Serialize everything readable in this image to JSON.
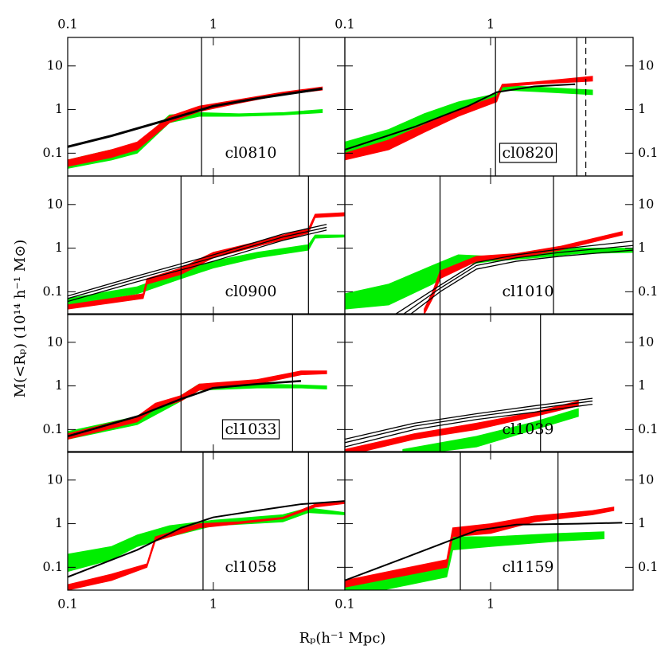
{
  "x_axis_label": "Rₚ(h⁻¹ Mpc)",
  "y_axis_label": "M(<Rₚ)  (10¹⁴ h⁻¹ M⊙)",
  "chart_data": [
    {
      "type": "line",
      "label": "cl0810",
      "xlim": [
        0.1,
        8
      ],
      "ylim": [
        0.03,
        45
      ],
      "xticks": [
        0.1,
        1
      ],
      "yticks": [
        0.1,
        1,
        10
      ],
      "log": true,
      "vlines": [
        {
          "x": 0.83
        },
        {
          "x": 3.9
        }
      ],
      "series": [
        {
          "color": "#00ee00",
          "x": [
            0.1,
            0.2,
            0.3,
            0.5,
            0.8,
            1.5,
            3,
            5.6
          ],
          "lower": [
            0.045,
            0.07,
            0.1,
            0.5,
            0.7,
            0.7,
            0.75,
            0.85
          ],
          "upper": [
            0.07,
            0.12,
            0.16,
            0.75,
            0.85,
            0.8,
            0.85,
            1.0
          ]
        },
        {
          "color": "#ff0000",
          "x": [
            0.1,
            0.2,
            0.3,
            0.5,
            0.8,
            1.5,
            3,
            5.6
          ],
          "lower": [
            0.05,
            0.08,
            0.12,
            0.5,
            0.9,
            1.4,
            2.2,
            2.8
          ],
          "upper": [
            0.07,
            0.12,
            0.18,
            0.7,
            1.2,
            1.7,
            2.5,
            3.3
          ]
        },
        {
          "color": "#000000",
          "width": 3,
          "x": [
            0.1,
            0.2,
            0.5,
            1,
            2,
            5.6
          ],
          "values": [
            0.14,
            0.25,
            0.6,
            1.2,
            1.8,
            3.0
          ]
        }
      ]
    },
    {
      "type": "line",
      "label": "cl0820",
      "boxed": true,
      "xlim": [
        0.1,
        9.5
      ],
      "ylim": [
        0.03,
        45
      ],
      "xticks": [
        0.1,
        1
      ],
      "yticks": [
        0.1,
        1,
        10
      ],
      "log": true,
      "vlines": [
        {
          "x": 1.08
        },
        {
          "x": 3.9
        },
        {
          "x": 4.5,
          "dashed": true
        }
      ],
      "series": [
        {
          "color": "#00ee00",
          "x": [
            0.1,
            0.2,
            0.35,
            0.6,
            1.1,
            1.2,
            2,
            5
          ],
          "lower": [
            0.1,
            0.2,
            0.4,
            1.0,
            1.8,
            2.8,
            2.6,
            2.2
          ],
          "upper": [
            0.18,
            0.35,
            0.8,
            1.5,
            2.3,
            3.5,
            3.3,
            2.8
          ]
        },
        {
          "color": "#ff0000",
          "x": [
            0.1,
            0.2,
            0.35,
            0.6,
            1.1,
            1.2,
            2,
            5
          ],
          "lower": [
            0.07,
            0.12,
            0.3,
            0.7,
            1.5,
            3.3,
            3.8,
            4.5
          ],
          "upper": [
            0.1,
            0.2,
            0.45,
            1.0,
            2,
            3.8,
            4.3,
            5.8
          ]
        },
        {
          "color": "#000000",
          "width": 2,
          "x": [
            0.1,
            0.3,
            0.7,
            1.1,
            2,
            3.8
          ],
          "values": [
            0.12,
            0.4,
            1.2,
            2.5,
            3.4,
            3.8
          ]
        }
      ]
    },
    {
      "type": "line",
      "label": "cl0900",
      "xlim": [
        0.1,
        8
      ],
      "ylim": [
        0.03,
        45
      ],
      "xticks": [
        0.1,
        1
      ],
      "yticks": [
        0.1,
        1,
        10
      ],
      "log": true,
      "vlines": [
        {
          "x": 0.6
        },
        {
          "x": 4.5
        }
      ],
      "series": [
        {
          "color": "#00ee00",
          "x": [
            0.1,
            0.3,
            0.6,
            1,
            2,
            4.5,
            5,
            8
          ],
          "lower": [
            0.05,
            0.09,
            0.2,
            0.35,
            0.6,
            0.9,
            1.7,
            1.8
          ],
          "upper": [
            0.07,
            0.13,
            0.3,
            0.5,
            0.8,
            1.2,
            2,
            2
          ]
        },
        {
          "color": "#ff0000",
          "x": [
            0.1,
            0.33,
            0.35,
            0.6,
            1,
            2,
            4.5,
            5,
            8
          ],
          "lower": [
            0.04,
            0.07,
            0.15,
            0.25,
            0.6,
            1.1,
            2.2,
            5,
            5.5
          ],
          "upper": [
            0.05,
            0.09,
            0.2,
            0.35,
            0.8,
            1.4,
            2.8,
            6,
            6.5
          ]
        },
        {
          "color": "#000000",
          "width": 1.3,
          "x": [
            0.1,
            0.3,
            1,
            3,
            6
          ],
          "values": [
            0.06,
            0.17,
            0.5,
            1.5,
            2.6
          ]
        },
        {
          "color": "#000000",
          "width": 1.3,
          "x": [
            0.1,
            0.3,
            1,
            3,
            6
          ],
          "values": [
            0.07,
            0.2,
            0.6,
            1.8,
            3.0
          ]
        },
        {
          "color": "#000000",
          "width": 1.3,
          "x": [
            0.1,
            0.3,
            1,
            3,
            6
          ],
          "values": [
            0.08,
            0.23,
            0.7,
            2.1,
            3.5
          ]
        }
      ]
    },
    {
      "type": "line",
      "label": "cl1010",
      "xlim": [
        0.1,
        9.5
      ],
      "ylim": [
        0.03,
        45
      ],
      "xticks": [
        0.1,
        1
      ],
      "yticks": [
        0.1,
        1,
        10
      ],
      "log": true,
      "vlines": [
        {
          "x": 0.45
        },
        {
          "x": 2.7
        }
      ],
      "series": [
        {
          "color": "#00ee00",
          "x": [
            0.1,
            0.2,
            0.4,
            0.6,
            1,
            2,
            4,
            9.5
          ],
          "lower": [
            0.04,
            0.05,
            0.15,
            0.4,
            0.5,
            0.6,
            0.75,
            0.8
          ],
          "upper": [
            0.09,
            0.15,
            0.4,
            0.7,
            0.65,
            0.8,
            1.0,
            1.0
          ]
        },
        {
          "color": "#ff0000",
          "x": [
            0.35,
            0.4,
            0.45,
            0.8,
            1.5,
            3,
            8
          ],
          "lower": [
            0.03,
            0.07,
            0.2,
            0.5,
            0.6,
            0.9,
            2
          ],
          "upper": [
            0.04,
            0.1,
            0.3,
            0.65,
            0.75,
            1.1,
            2.4
          ]
        },
        {
          "color": "#000000",
          "width": 1.3,
          "x": [
            0.28,
            0.45,
            0.8,
            1.5,
            3,
            9.5
          ],
          "values": [
            0.03,
            0.1,
            0.33,
            0.5,
            0.65,
            0.9
          ]
        },
        {
          "color": "#000000",
          "width": 1.3,
          "x": [
            0.25,
            0.45,
            0.8,
            1.5,
            3,
            9.5
          ],
          "values": [
            0.03,
            0.12,
            0.4,
            0.6,
            0.8,
            1.15
          ]
        },
        {
          "color": "#000000",
          "width": 1.3,
          "x": [
            0.22,
            0.45,
            0.8,
            1.5,
            3,
            9.5
          ],
          "values": [
            0.03,
            0.14,
            0.47,
            0.7,
            0.95,
            1.45
          ]
        }
      ]
    },
    {
      "type": "line",
      "label": "cl1033",
      "boxed": true,
      "xlim": [
        0.1,
        8
      ],
      "ylim": [
        0.03,
        45
      ],
      "xticks": [
        0.1,
        1
      ],
      "yticks": [
        0.1,
        1,
        10
      ],
      "log": true,
      "vlines": [
        {
          "x": 0.6
        },
        {
          "x": 3.5
        }
      ],
      "series": [
        {
          "color": "#00ee00",
          "x": [
            0.1,
            0.3,
            0.6,
            0.8,
            2,
            4,
            6
          ],
          "lower": [
            0.06,
            0.13,
            0.45,
            0.8,
            0.9,
            0.9,
            0.85
          ],
          "upper": [
            0.09,
            0.2,
            0.6,
            1.1,
            1.1,
            1.05,
            1.0
          ]
        },
        {
          "color": "#ff0000",
          "x": [
            0.1,
            0.3,
            0.4,
            0.6,
            0.8,
            2,
            4,
            6
          ],
          "lower": [
            0.06,
            0.15,
            0.3,
            0.45,
            0.8,
            1.1,
            1.8,
            1.9
          ],
          "upper": [
            0.08,
            0.2,
            0.4,
            0.6,
            1.1,
            1.4,
            2.2,
            2.2
          ]
        },
        {
          "color": "#000000",
          "width": 2.5,
          "x": [
            0.1,
            0.3,
            0.6,
            1,
            2,
            4
          ],
          "values": [
            0.07,
            0.2,
            0.5,
            0.9,
            1.1,
            1.3
          ]
        }
      ]
    },
    {
      "type": "line",
      "label": "cl1039",
      "xlim": [
        0.1,
        9.5
      ],
      "ylim": [
        0.03,
        45
      ],
      "xticks": [
        0.1,
        1
      ],
      "yticks": [
        0.1,
        1,
        10
      ],
      "log": true,
      "vlines": [
        {
          "x": 0.45
        },
        {
          "x": 2.2
        }
      ],
      "series": [
        {
          "color": "#00ee00",
          "x": [
            0.25,
            0.8,
            2,
            4
          ],
          "lower": [
            0.025,
            0.04,
            0.1,
            0.2
          ],
          "upper": [
            0.035,
            0.07,
            0.15,
            0.3
          ]
        },
        {
          "color": "#ff0000",
          "x": [
            0.1,
            0.3,
            0.8,
            2,
            4
          ],
          "lower": [
            0.025,
            0.06,
            0.1,
            0.2,
            0.35
          ],
          "upper": [
            0.035,
            0.08,
            0.14,
            0.25,
            0.45
          ]
        },
        {
          "color": "#000000",
          "width": 1.3,
          "x": [
            0.1,
            0.3,
            0.8,
            2,
            5
          ],
          "values": [
            0.04,
            0.1,
            0.17,
            0.25,
            0.38
          ]
        },
        {
          "color": "#000000",
          "width": 1.3,
          "x": [
            0.1,
            0.3,
            0.8,
            2,
            5
          ],
          "values": [
            0.05,
            0.12,
            0.2,
            0.3,
            0.45
          ]
        },
        {
          "color": "#000000",
          "width": 1.3,
          "x": [
            0.1,
            0.3,
            0.8,
            2,
            5
          ],
          "values": [
            0.06,
            0.14,
            0.23,
            0.35,
            0.52
          ]
        }
      ]
    },
    {
      "type": "line",
      "label": "cl1058",
      "xlim": [
        0.1,
        8
      ],
      "ylim": [
        0.03,
        45
      ],
      "xticks": [
        0.1,
        1
      ],
      "yticks": [
        0.1,
        1,
        10
      ],
      "log": true,
      "vlines": [
        {
          "x": 0.85
        },
        {
          "x": 4.5
        }
      ],
      "series": [
        {
          "color": "#00ee00",
          "x": [
            0.1,
            0.2,
            0.3,
            0.5,
            1,
            3,
            4.5,
            8
          ],
          "lower": [
            0.08,
            0.15,
            0.3,
            0.5,
            0.9,
            1.1,
            1.8,
            1.6
          ],
          "upper": [
            0.2,
            0.3,
            0.55,
            0.9,
            1.2,
            1.6,
            2.3,
            1.8
          ]
        },
        {
          "color": "#ff0000",
          "x": [
            0.1,
            0.2,
            0.35,
            0.4,
            0.8,
            1.5,
            3,
            5,
            8
          ],
          "lower": [
            0.03,
            0.05,
            0.1,
            0.4,
            0.8,
            1.0,
            1.3,
            2.4,
            2.9
          ],
          "upper": [
            0.04,
            0.07,
            0.12,
            0.5,
            1.0,
            1.1,
            1.4,
            2.8,
            3.3
          ]
        },
        {
          "color": "#000000",
          "width": 2,
          "x": [
            0.1,
            0.3,
            0.6,
            1,
            2,
            4,
            8
          ],
          "values": [
            0.06,
            0.25,
            0.8,
            1.4,
            2.0,
            2.8,
            3.3
          ]
        }
      ]
    },
    {
      "type": "line",
      "label": "cl1159",
      "xlim": [
        0.1,
        9.5
      ],
      "ylim": [
        0.03,
        45
      ],
      "xticks": [
        0.1,
        1
      ],
      "yticks": [
        0.1,
        1,
        10
      ],
      "log": true,
      "vlines": [
        {
          "x": 0.62
        },
        {
          "x": 2.9
        }
      ],
      "series": [
        {
          "color": "#00ee00",
          "x": [
            0.1,
            0.5,
            0.55,
            1,
            3,
            6
          ],
          "lower": [
            0.02,
            0.06,
            0.25,
            0.3,
            0.4,
            0.45
          ],
          "upper": [
            0.04,
            0.12,
            0.5,
            0.5,
            0.6,
            0.65
          ]
        },
        {
          "color": "#ff0000",
          "x": [
            0.1,
            0.5,
            0.55,
            1,
            2,
            5,
            7
          ],
          "lower": [
            0.035,
            0.1,
            0.5,
            0.6,
            1.1,
            1.6,
            2
          ],
          "upper": [
            0.05,
            0.15,
            0.8,
            1.0,
            1.5,
            2.0,
            2.4
          ]
        },
        {
          "color": "#000000",
          "width": 2,
          "x": [
            0.1,
            0.3,
            0.8,
            1.5,
            4,
            8
          ],
          "values": [
            0.05,
            0.2,
            0.7,
            0.95,
            1.0,
            1.05
          ]
        }
      ]
    }
  ]
}
